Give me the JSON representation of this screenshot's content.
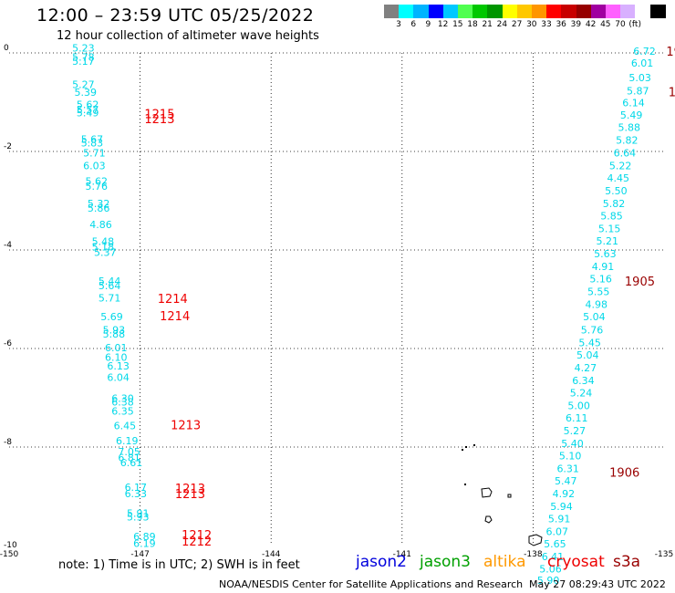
{
  "header": {
    "title": "12:00 – 23:59 UTC 05/25/2022",
    "subtitle": "12 hour collection of altimeter wave heights"
  },
  "color_scale": {
    "colors": [
      "#808080",
      "#00ffff",
      "#00b4ff",
      "#0000ff",
      "#00c8ff",
      "#50ff50",
      "#00c800",
      "#009600",
      "#ffff00",
      "#ffc800",
      "#ff9600",
      "#ff0000",
      "#c80000",
      "#960000",
      "#a000a0",
      "#ff60ff",
      "#d8b0ff",
      "#ffffff",
      "#000000"
    ],
    "labels": [
      "3",
      "6",
      "9",
      "12",
      "15",
      "18",
      "21",
      "24",
      "27",
      "30",
      "33",
      "36",
      "39",
      "42",
      "45",
      "70",
      "(ft)"
    ]
  },
  "legend": {
    "note": "note:  1) Time is in UTC;  2) SWH is in feet",
    "missions": [
      {
        "name": "jason2",
        "color": "#0000dd"
      },
      {
        "name": "jason3",
        "color": "#00a000"
      },
      {
        "name": "altika",
        "color": "#ff9900"
      },
      {
        "name": "cryosat",
        "color": "#ee0000"
      },
      {
        "name": "s3a",
        "color": "#990000"
      }
    ]
  },
  "footer": {
    "credit": "NOAA/NESDIS Center for Satellite Applications and Research",
    "timestamp": "May 27 08:29:43 UTC 2022"
  },
  "chart_data": {
    "type": "scatter",
    "xlim": [
      -150,
      -135
    ],
    "ylim": [
      -10,
      0
    ],
    "x_ticks": [
      "-150",
      "-147",
      "-144",
      "-141",
      "-138",
      "-135"
    ],
    "y_ticks": [
      "0",
      "-2",
      "-4",
      "-6",
      "-8",
      "-10"
    ],
    "grid": true,
    "series": [
      {
        "name": "cryosat",
        "color": "#00d8e8",
        "points": [
          [
            -148.3,
            0.03,
            "5.23"
          ],
          [
            -148.3,
            -0.16,
            "5.78"
          ],
          [
            -148.3,
            -0.24,
            "5.17"
          ],
          [
            -148.3,
            -0.71,
            "5.27"
          ],
          [
            -148.25,
            -0.87,
            "5.39"
          ],
          [
            -148.2,
            -1.12,
            "5.62"
          ],
          [
            -148.2,
            -1.22,
            "5.57"
          ],
          [
            -148.2,
            -1.29,
            "5.49"
          ],
          [
            -148.1,
            -1.82,
            "5.67"
          ],
          [
            -148.1,
            -1.9,
            "5.83"
          ],
          [
            -148.05,
            -2.1,
            "5.71"
          ],
          [
            -148.05,
            -2.36,
            "6.03"
          ],
          [
            -148.0,
            -2.68,
            "5.62"
          ],
          [
            -148.0,
            -2.78,
            "5.76"
          ],
          [
            -147.95,
            -3.13,
            "5.32"
          ],
          [
            -147.95,
            -3.22,
            "5.86"
          ],
          [
            -147.9,
            -3.56,
            "4.86"
          ],
          [
            -147.85,
            -3.9,
            "5.48"
          ],
          [
            -147.85,
            -4.01,
            "5.18"
          ],
          [
            -147.8,
            -4.12,
            "5.37"
          ],
          [
            -147.7,
            -4.7,
            "5.44"
          ],
          [
            -147.7,
            -4.8,
            "5.64"
          ],
          [
            -147.7,
            -5.05,
            "5.71"
          ],
          [
            -147.65,
            -5.43,
            "5.69"
          ],
          [
            -147.6,
            -5.69,
            "5.93"
          ],
          [
            -147.6,
            -5.78,
            "5.88"
          ],
          [
            -147.55,
            -6.06,
            "6.01"
          ],
          [
            -147.55,
            -6.25,
            "6.10"
          ],
          [
            -147.5,
            -6.43,
            "6.13"
          ],
          [
            -147.5,
            -6.66,
            "6.04"
          ],
          [
            -147.4,
            -7.08,
            "6.30"
          ],
          [
            -147.4,
            -7.16,
            "6.38"
          ],
          [
            -147.4,
            -7.34,
            "6.35"
          ],
          [
            -147.35,
            -7.64,
            "6.45"
          ],
          [
            -147.3,
            -7.94,
            "6.19"
          ],
          [
            -147.25,
            -8.17,
            "7.05"
          ],
          [
            -147.25,
            -8.29,
            "6.81"
          ],
          [
            -147.2,
            -8.39,
            "6.61"
          ],
          [
            -147.1,
            -8.89,
            "6.17"
          ],
          [
            -147.1,
            -9.02,
            "6.33"
          ],
          [
            -147.05,
            -9.42,
            "5.91"
          ],
          [
            -147.05,
            -9.49,
            "5.93"
          ],
          [
            -146.9,
            -9.89,
            "6.89"
          ],
          [
            -146.9,
            -10.03,
            "6.19"
          ]
        ]
      },
      {
        "name": "cryosat",
        "color": "#00d8e8",
        "points": [
          [
            -135.45,
            -0.04,
            "6.72"
          ],
          [
            -135.5,
            -0.28,
            "6.01"
          ],
          [
            -135.55,
            -0.57,
            "5.03"
          ],
          [
            -135.6,
            -0.84,
            "5.87"
          ],
          [
            -135.7,
            -1.08,
            "6.14"
          ],
          [
            -135.75,
            -1.33,
            "5.49"
          ],
          [
            -135.8,
            -1.58,
            "5.88"
          ],
          [
            -135.85,
            -1.84,
            "5.82"
          ],
          [
            -135.9,
            -2.1,
            "6.64"
          ],
          [
            -136.0,
            -2.36,
            "5.22"
          ],
          [
            -136.05,
            -2.61,
            "4.45"
          ],
          [
            -136.1,
            -2.87,
            "5.50"
          ],
          [
            -136.15,
            -3.13,
            "5.82"
          ],
          [
            -136.2,
            -3.38,
            "5.85"
          ],
          [
            -136.25,
            -3.64,
            "5.15"
          ],
          [
            -136.3,
            -3.89,
            "5.21"
          ],
          [
            -136.35,
            -4.15,
            "5.63"
          ],
          [
            -136.4,
            -4.41,
            "4.91"
          ],
          [
            -136.45,
            -4.66,
            "5.16"
          ],
          [
            -136.5,
            -4.92,
            "5.55"
          ],
          [
            -136.55,
            -5.18,
            "4.98"
          ],
          [
            -136.6,
            -5.43,
            "5.04"
          ],
          [
            -136.65,
            -5.69,
            "5.76"
          ],
          [
            -136.7,
            -5.95,
            "5.45"
          ],
          [
            -136.75,
            -6.2,
            "5.04"
          ],
          [
            -136.8,
            -6.46,
            "4.27"
          ],
          [
            -136.85,
            -6.72,
            "6.34"
          ],
          [
            -136.9,
            -6.97,
            "5.24"
          ],
          [
            -136.95,
            -7.23,
            "5.00"
          ],
          [
            -137.0,
            -7.48,
            "6.11"
          ],
          [
            -137.05,
            -7.74,
            "5.27"
          ],
          [
            -137.1,
            -8.0,
            "5.40"
          ],
          [
            -137.15,
            -8.25,
            "5.10"
          ],
          [
            -137.2,
            -8.51,
            "6.31"
          ],
          [
            -137.25,
            -8.76,
            "5.47"
          ],
          [
            -137.3,
            -9.02,
            "4.92"
          ],
          [
            -137.35,
            -9.28,
            "5.94"
          ],
          [
            -137.4,
            -9.53,
            "5.91"
          ],
          [
            -137.45,
            -9.79,
            "6.07"
          ],
          [
            -137.5,
            -10.04,
            "5.65"
          ],
          [
            -137.55,
            -10.3,
            "6.41"
          ],
          [
            -137.6,
            -10.55,
            "5.06"
          ],
          [
            -137.65,
            -10.78,
            "5.90"
          ]
        ]
      }
    ],
    "time_labels": [
      {
        "x": -146.9,
        "y": -1.32,
        "label": "1215",
        "color": "#ee0000"
      },
      {
        "x": -146.9,
        "y": -1.43,
        "label": "1213",
        "color": "#ee0000"
      },
      {
        "x": -146.6,
        "y": -5.07,
        "label": "1214",
        "color": "#ee0000"
      },
      {
        "x": -146.55,
        "y": -5.43,
        "label": "1214",
        "color": "#ee0000"
      },
      {
        "x": -146.3,
        "y": -7.64,
        "label": "1213",
        "color": "#ee0000"
      },
      {
        "x": -146.2,
        "y": -8.93,
        "label": "1213",
        "color": "#ee0000"
      },
      {
        "x": -146.2,
        "y": -9.04,
        "label": "1213",
        "color": "#ee0000"
      },
      {
        "x": -146.05,
        "y": -9.87,
        "label": "1212",
        "color": "#ee0000"
      },
      {
        "x": -146.05,
        "y": -10.0,
        "label": "1212",
        "color": "#ee0000"
      },
      {
        "x": -134.95,
        "y": -0.06,
        "label": "19",
        "color": "#990000"
      },
      {
        "x": -134.9,
        "y": -0.88,
        "label": "19",
        "color": "#990000"
      },
      {
        "x": -135.9,
        "y": -4.72,
        "label": "1905",
        "color": "#990000"
      },
      {
        "x": -136.25,
        "y": -8.6,
        "label": "1906",
        "color": "#990000"
      }
    ]
  }
}
